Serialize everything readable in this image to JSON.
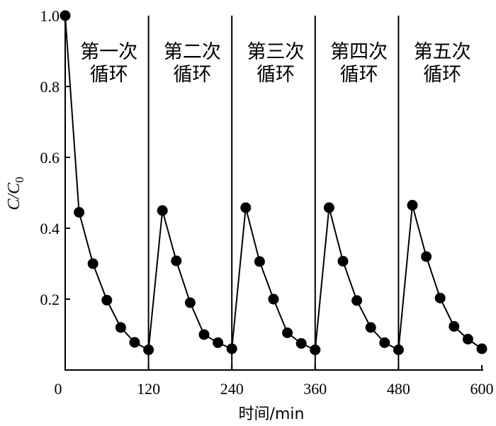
{
  "chart_data": {
    "type": "line",
    "xlabel": "时间/min",
    "ylabel": "C/C0",
    "xlim": [
      0,
      600
    ],
    "ylim": [
      0,
      1.0
    ],
    "xticks": [
      "0",
      "120",
      "240",
      "360",
      "480",
      "600"
    ],
    "yticks": [
      "0.2",
      "0.4",
      "0.6",
      "0.8",
      "1.0"
    ],
    "grid": false,
    "marker": "filled-circle",
    "line_color": "#000000",
    "cycle_labels": [
      {
        "line1": "第一次",
        "line2": "循环"
      },
      {
        "line1": "第二次",
        "line2": "循环"
      },
      {
        "line1": "第三次",
        "line2": "循环"
      },
      {
        "line1": "第四次",
        "line2": "循环"
      },
      {
        "line1": "第五次",
        "line2": "循环"
      }
    ],
    "series": [
      {
        "x": [
          0,
          20,
          40,
          60,
          80,
          100,
          120,
          140,
          160,
          180,
          200,
          220,
          240,
          260,
          280,
          300,
          320,
          340,
          360,
          380,
          400,
          420,
          440,
          460,
          480,
          500,
          520,
          540,
          560,
          580,
          600
        ],
        "y": [
          1.0,
          0.445,
          0.3,
          0.197,
          0.12,
          0.078,
          0.057,
          0.45,
          0.308,
          0.19,
          0.1,
          0.077,
          0.06,
          0.458,
          0.306,
          0.2,
          0.105,
          0.075,
          0.057,
          0.458,
          0.307,
          0.196,
          0.12,
          0.077,
          0.057,
          0.465,
          0.32,
          0.203,
          0.123,
          0.087,
          0.06
        ]
      }
    ],
    "cycle_breaks_x": [
      120,
      240,
      360,
      480
    ]
  }
}
